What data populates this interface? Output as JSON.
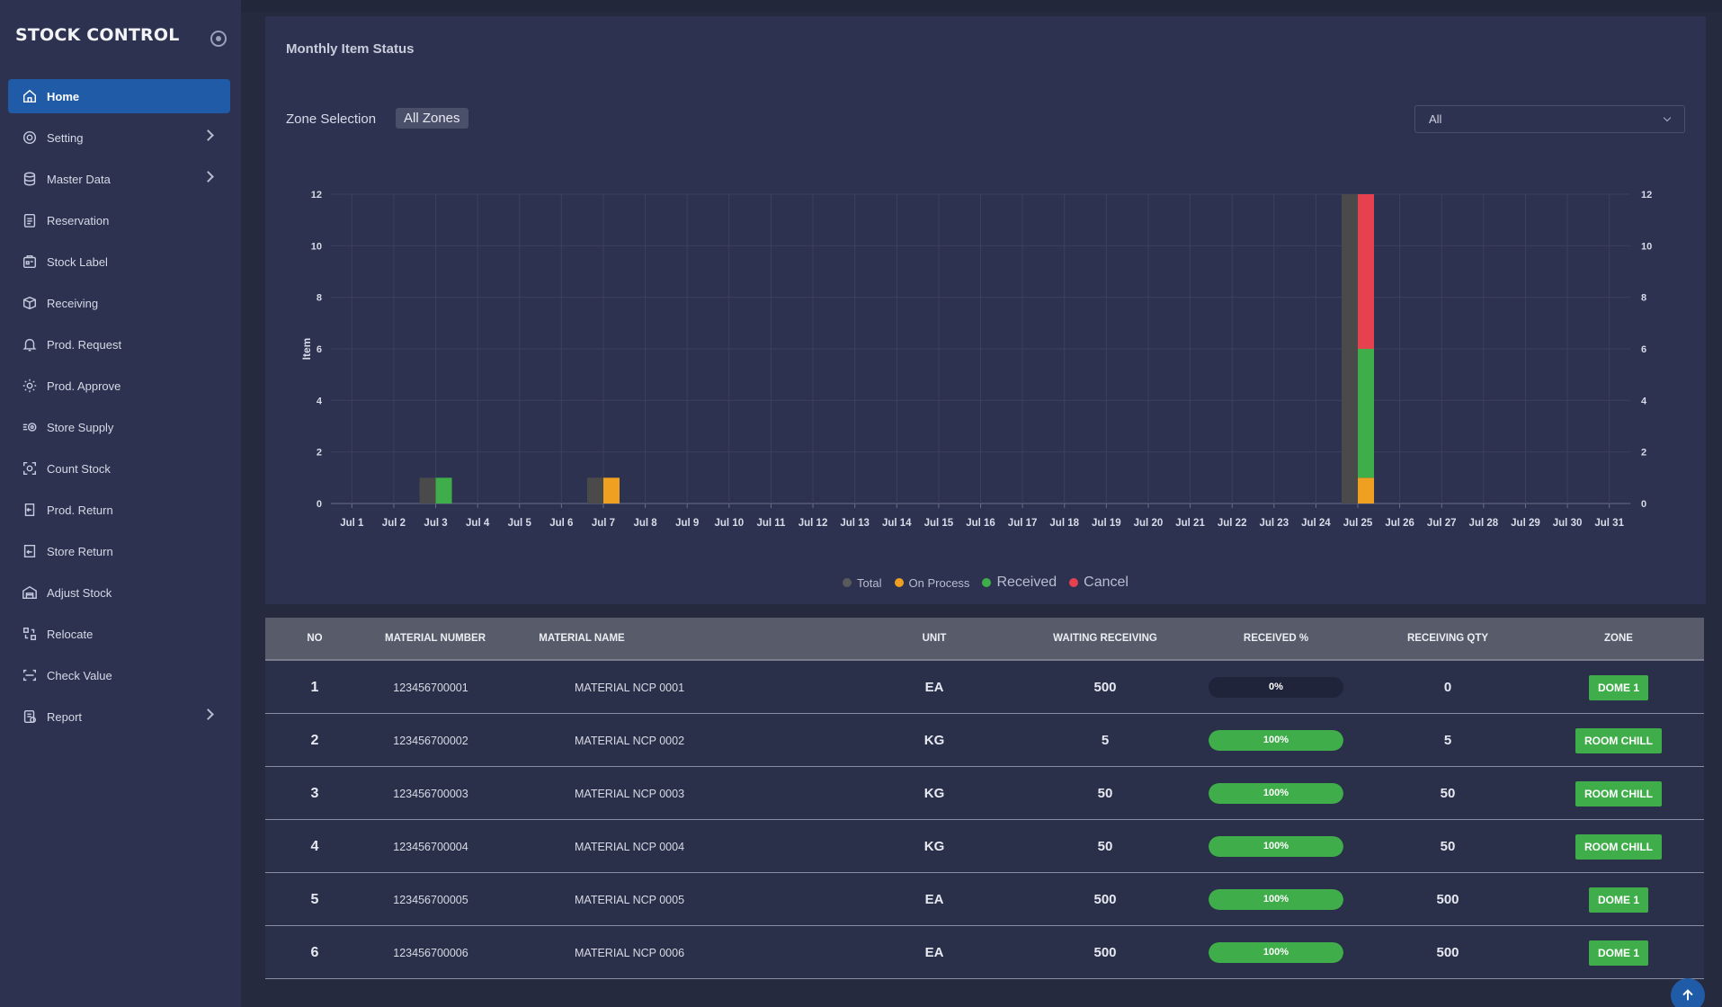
{
  "app": {
    "title": "STOCK CONTROL"
  },
  "sidebar": {
    "items": [
      {
        "label": "Home",
        "icon": "home-icon",
        "active": true,
        "chevron": false
      },
      {
        "label": "Setting",
        "icon": "gear-icon",
        "chevron": true
      },
      {
        "label": "Master Data",
        "icon": "database-icon",
        "chevron": true
      },
      {
        "label": "Reservation",
        "icon": "clipboard-icon",
        "chevron": false
      },
      {
        "label": "Stock Label",
        "icon": "label-icon",
        "chevron": false
      },
      {
        "label": "Receiving",
        "icon": "box-icon",
        "chevron": false
      },
      {
        "label": "Prod. Request",
        "icon": "bell-icon",
        "chevron": false
      },
      {
        "label": "Prod. Approve",
        "icon": "gear-check-icon",
        "chevron": false
      },
      {
        "label": "Store Supply",
        "icon": "supply-icon",
        "chevron": false
      },
      {
        "label": "Count Stock",
        "icon": "scan-icon",
        "chevron": false
      },
      {
        "label": "Prod. Return",
        "icon": "return-icon",
        "chevron": false
      },
      {
        "label": "Store Return",
        "icon": "store-return-icon",
        "chevron": false
      },
      {
        "label": "Adjust Stock",
        "icon": "warehouse-icon",
        "chevron": false
      },
      {
        "label": "Relocate",
        "icon": "relocate-icon",
        "chevron": false
      },
      {
        "label": "Check Value",
        "icon": "check-value-icon",
        "chevron": false
      },
      {
        "label": "Report",
        "icon": "report-icon",
        "chevron": true
      }
    ]
  },
  "panel": {
    "title": "Monthly Item Status",
    "zone_label": "Zone Selection",
    "zone_value": "All Zones",
    "filter_value": "All"
  },
  "chart_data": {
    "type": "bar",
    "ylabel": "Item",
    "ylim": [
      0,
      12
    ],
    "yticks": [
      0,
      2,
      4,
      6,
      8,
      10,
      12
    ],
    "grid": true,
    "categories": [
      "Jul 1",
      "Jul 2",
      "Jul 3",
      "Jul 4",
      "Jul 5",
      "Jul 6",
      "Jul 7",
      "Jul 8",
      "Jul 9",
      "Jul 10",
      "Jul 11",
      "Jul 12",
      "Jul 13",
      "Jul 14",
      "Jul 15",
      "Jul 16",
      "Jul 17",
      "Jul 18",
      "Jul 19",
      "Jul 20",
      "Jul 21",
      "Jul 22",
      "Jul 23",
      "Jul 24",
      "Jul 25",
      "Jul 26",
      "Jul 27",
      "Jul 28",
      "Jul 29",
      "Jul 30",
      "Jul 31"
    ],
    "series": [
      {
        "name": "Total",
        "color": "#4a4a4a",
        "stack": "total",
        "values": [
          0,
          0,
          1,
          0,
          0,
          0,
          1,
          0,
          0,
          0,
          0,
          0,
          0,
          0,
          0,
          0,
          0,
          0,
          0,
          0,
          0,
          0,
          0,
          0,
          12,
          0,
          0,
          0,
          0,
          0,
          0
        ]
      },
      {
        "name": "On Process",
        "color": "#f0a020",
        "stack": "status",
        "values": [
          0,
          0,
          0,
          0,
          0,
          0,
          1,
          0,
          0,
          0,
          0,
          0,
          0,
          0,
          0,
          0,
          0,
          0,
          0,
          0,
          0,
          0,
          0,
          0,
          1,
          0,
          0,
          0,
          0,
          0,
          0
        ]
      },
      {
        "name": "Received",
        "color": "#3fae4a",
        "stack": "status",
        "values": [
          0,
          0,
          1,
          0,
          0,
          0,
          0,
          0,
          0,
          0,
          0,
          0,
          0,
          0,
          0,
          0,
          0,
          0,
          0,
          0,
          0,
          0,
          0,
          0,
          5,
          0,
          0,
          0,
          0,
          0,
          0
        ]
      },
      {
        "name": "Cancel",
        "color": "#e5414f",
        "stack": "status",
        "values": [
          0,
          0,
          0,
          0,
          0,
          0,
          0,
          0,
          0,
          0,
          0,
          0,
          0,
          0,
          0,
          0,
          0,
          0,
          0,
          0,
          0,
          0,
          0,
          0,
          6,
          0,
          0,
          0,
          0,
          0,
          0
        ]
      }
    ],
    "legend_position": "bottom-center"
  },
  "table": {
    "columns": [
      "NO",
      "MATERIAL NUMBER",
      "MATERIAL NAME",
      "UNIT",
      "WAITING RECEIVING",
      "RECEIVED %",
      "RECEIVING QTY",
      "ZONE"
    ],
    "rows": [
      {
        "no": "1",
        "material_number": "123456700001",
        "material_name": "MATERIAL NCP 0001",
        "unit": "EA",
        "waiting": "500",
        "received_pct": 0,
        "received_label": "0%",
        "qty": "0",
        "zone": "DOME 1"
      },
      {
        "no": "2",
        "material_number": "123456700002",
        "material_name": "MATERIAL NCP 0002",
        "unit": "KG",
        "waiting": "5",
        "received_pct": 100,
        "received_label": "100%",
        "qty": "5",
        "zone": "ROOM CHILL"
      },
      {
        "no": "3",
        "material_number": "123456700003",
        "material_name": "MATERIAL NCP 0003",
        "unit": "KG",
        "waiting": "50",
        "received_pct": 100,
        "received_label": "100%",
        "qty": "50",
        "zone": "ROOM CHILL"
      },
      {
        "no": "4",
        "material_number": "123456700004",
        "material_name": "MATERIAL NCP 0004",
        "unit": "KG",
        "waiting": "50",
        "received_pct": 100,
        "received_label": "100%",
        "qty": "50",
        "zone": "ROOM CHILL"
      },
      {
        "no": "5",
        "material_number": "123456700005",
        "material_name": "MATERIAL NCP 0005",
        "unit": "EA",
        "waiting": "500",
        "received_pct": 100,
        "received_label": "100%",
        "qty": "500",
        "zone": "DOME 1"
      },
      {
        "no": "6",
        "material_number": "123456700006",
        "material_name": "MATERIAL NCP 0006",
        "unit": "EA",
        "waiting": "500",
        "received_pct": 100,
        "received_label": "100%",
        "qty": "500",
        "zone": "DOME 1"
      }
    ]
  },
  "colors": {
    "accent": "#1f5ba6",
    "success": "#3fae4a",
    "warning": "#f0a020",
    "danger": "#e5414f"
  }
}
